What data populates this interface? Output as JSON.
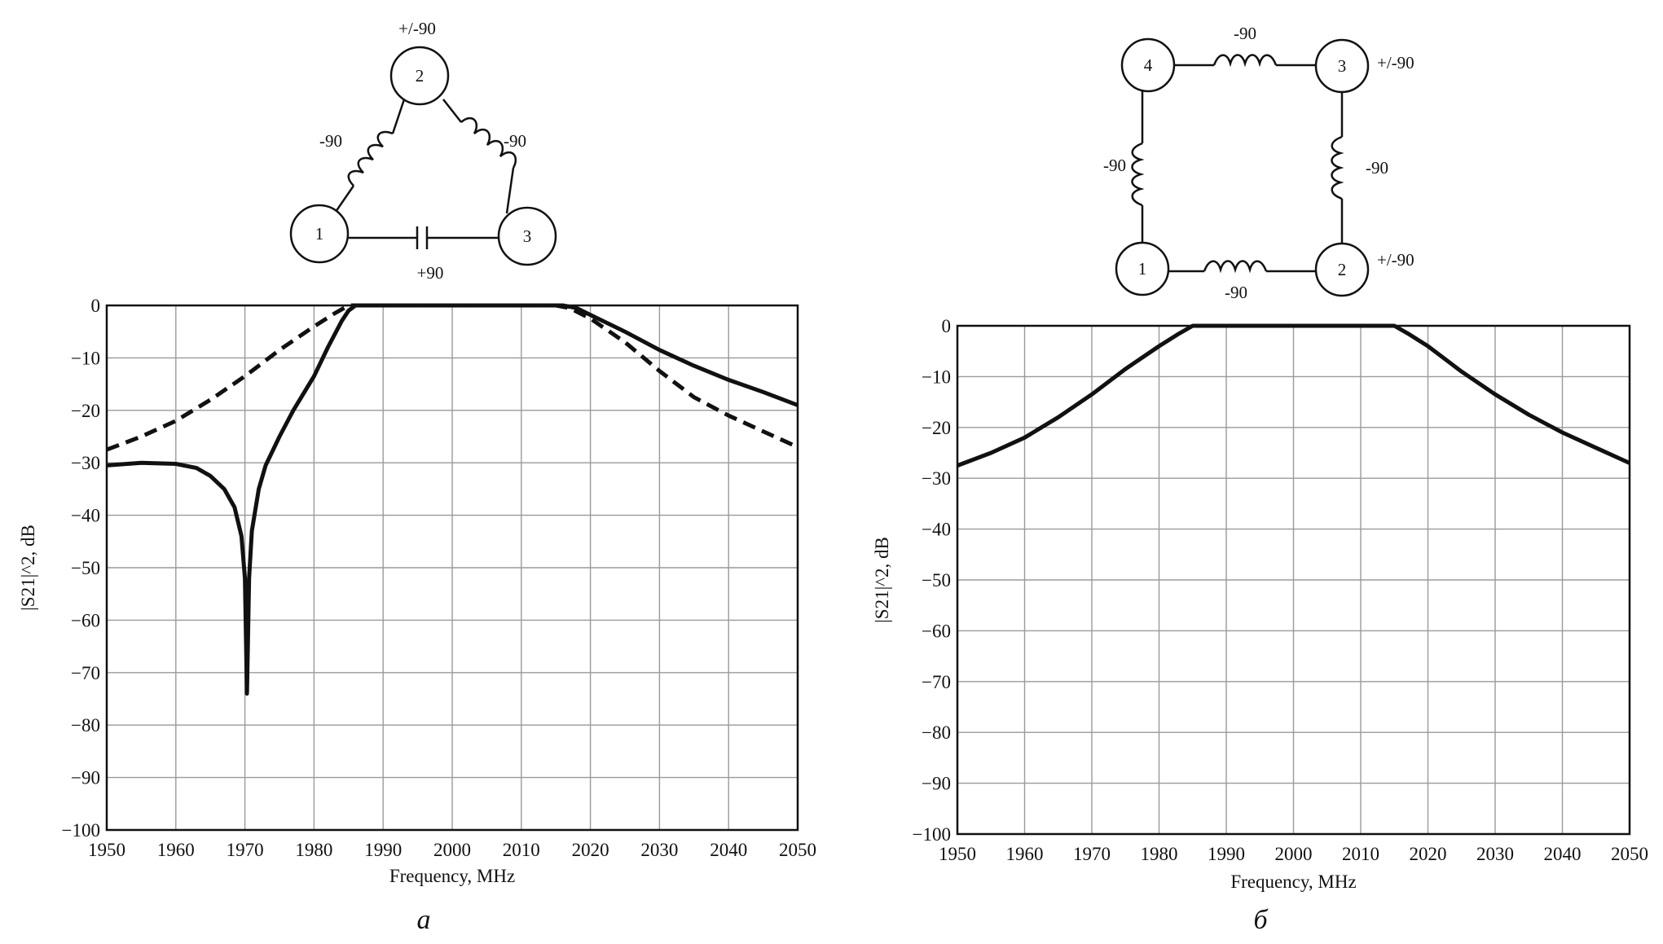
{
  "panels": [
    {
      "letter": "а",
      "schematic": {
        "nodes": [
          "1",
          "2",
          "3"
        ],
        "labels": {
          "left_coupling": "-90",
          "right_coupling": "-90",
          "bottom_coupling": "+90",
          "node2_phase": "+/-90"
        }
      }
    },
    {
      "letter": "б",
      "schematic": {
        "nodes": [
          "1",
          "2",
          "3",
          "4"
        ],
        "labels": {
          "top_coupling": "-90",
          "left_coupling": "-90",
          "right_coupling": "-90",
          "bottom_coupling": "-90",
          "node3_phase": "+/-90",
          "node2_phase": "+/-90"
        }
      }
    }
  ],
  "chart_data": [
    {
      "type": "line",
      "xlabel": "Frequency, MHz",
      "ylabel": "|S21|^2, dB",
      "xlim": [
        1950,
        2050
      ],
      "ylim": [
        -100,
        0
      ],
      "xticks": [
        1950,
        1960,
        1970,
        1980,
        1990,
        2000,
        2010,
        2020,
        2030,
        2040,
        2050
      ],
      "yticks": [
        0,
        -10,
        -20,
        -30,
        -40,
        -50,
        -60,
        -70,
        -80,
        -90,
        -100
      ],
      "ytick_labels": [
        "0",
        "−10",
        "−20",
        "−30",
        "−40",
        "−50",
        "−60",
        "−70",
        "−80",
        "−90",
        "−100"
      ],
      "grid": true,
      "series": [
        {
          "style": "solid",
          "x": [
            1950,
            1955,
            1960,
            1963,
            1965,
            1967,
            1968.5,
            1969.5,
            1970,
            1970.3,
            1970.6,
            1971,
            1972,
            1973,
            1975,
            1977,
            1980,
            1982,
            1984,
            1985,
            1986,
            1987,
            2010,
            2014,
            2016,
            2018,
            2020,
            2025,
            2030,
            2035,
            2040,
            2045,
            2050
          ],
          "y": [
            -30.5,
            -30,
            -30.2,
            -31,
            -32.5,
            -35,
            -38.5,
            -44,
            -52,
            -74,
            -52,
            -43,
            -35,
            -30.5,
            -25,
            -20,
            -13.5,
            -8,
            -3,
            -1,
            0,
            0,
            0,
            0,
            0,
            -0.5,
            -1.8,
            -5,
            -8.5,
            -11.5,
            -14.2,
            -16.5,
            -19
          ]
        },
        {
          "style": "dashed",
          "x": [
            1950,
            1955,
            1960,
            1965,
            1970,
            1975,
            1980,
            1983,
            1985,
            2015,
            2017,
            2020,
            2025,
            2030,
            2035,
            2040,
            2045,
            2050
          ],
          "y": [
            -27.5,
            -25,
            -22,
            -18,
            -13.5,
            -8.5,
            -4,
            -1.5,
            0,
            0,
            -0.5,
            -2.5,
            -7,
            -12.5,
            -17.5,
            -21,
            -24,
            -27
          ]
        }
      ]
    },
    {
      "type": "line",
      "xlabel": "Frequency, MHz",
      "ylabel": "|S21|^2, dB",
      "xlim": [
        1950,
        2050
      ],
      "ylim": [
        -100,
        0
      ],
      "xticks": [
        1950,
        1960,
        1970,
        1980,
        1990,
        2000,
        2010,
        2020,
        2030,
        2040,
        2050
      ],
      "yticks": [
        0,
        -10,
        -20,
        -30,
        -40,
        -50,
        -60,
        -70,
        -80,
        -90,
        -100
      ],
      "ytick_labels": [
        "0",
        "−10",
        "−20",
        "−30",
        "−40",
        "−50",
        "−60",
        "−70",
        "−80",
        "−90",
        "−100"
      ],
      "grid": true,
      "series": [
        {
          "style": "solid",
          "x": [
            1950,
            1955,
            1960,
            1965,
            1970,
            1975,
            1980,
            1983,
            1985,
            2015,
            2017,
            2020,
            2025,
            2030,
            2035,
            2040,
            2045,
            2050
          ],
          "y": [
            -27.5,
            -25,
            -22,
            -18,
            -13.5,
            -8.5,
            -4,
            -1.5,
            0,
            0,
            -1.5,
            -4,
            -9,
            -13.5,
            -17.5,
            -21,
            -24,
            -27
          ]
        }
      ]
    }
  ]
}
